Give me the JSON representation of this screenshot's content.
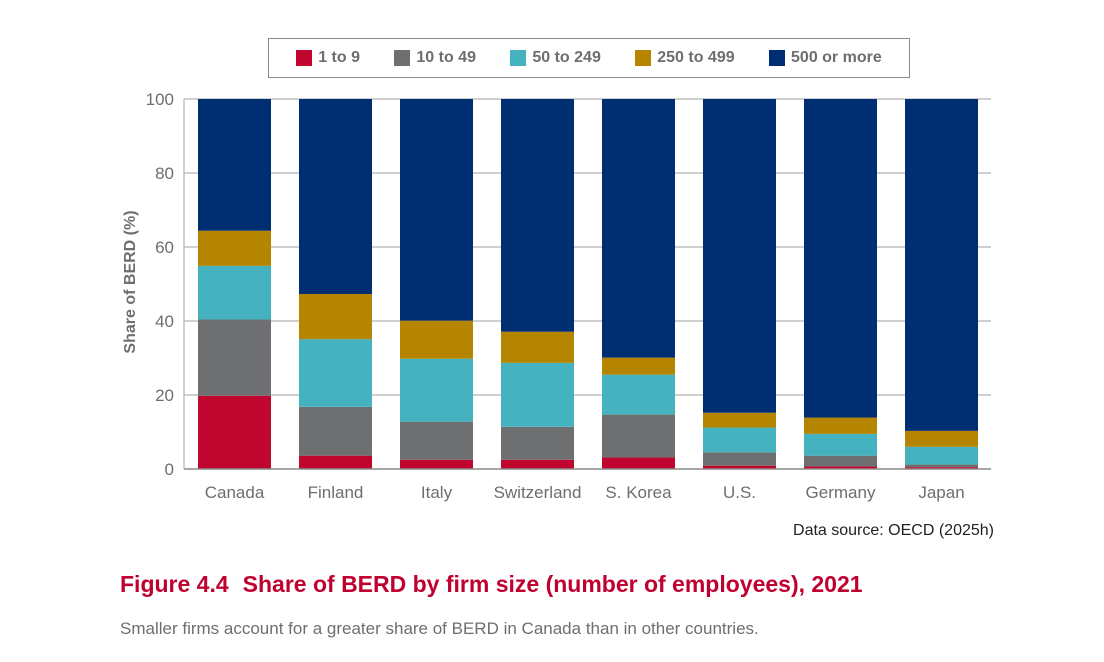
{
  "chart_data": {
    "type": "bar",
    "stacked": true,
    "categories": [
      "Canada",
      "Finland",
      "Italy",
      "Switzerland",
      "S. Korea",
      "U.S.",
      "Germany",
      "Japan"
    ],
    "series": [
      {
        "name": "1 to 9",
        "color": "#c0052f",
        "values": [
          19.8,
          3.6,
          2.5,
          2.5,
          3.1,
          0.9,
          0.7,
          0.5
        ]
      },
      {
        "name": "10 to 49",
        "color": "#6e6f71",
        "values": [
          20.6,
          13.2,
          10.3,
          8.9,
          11.6,
          3.6,
          2.9,
          0.7
        ]
      },
      {
        "name": "50 to 249",
        "color": "#44b3bf",
        "values": [
          14.5,
          18.3,
          17.0,
          17.3,
          10.8,
          6.7,
          5.9,
          4.8
        ]
      },
      {
        "name": "250 to 499",
        "color": "#b68500",
        "values": [
          9.5,
          12.2,
          10.3,
          8.4,
          4.6,
          4.0,
          4.4,
          4.3
        ]
      },
      {
        "name": "500 or more",
        "color": "#002e72",
        "values": [
          35.6,
          52.7,
          59.9,
          62.9,
          69.9,
          84.8,
          86.1,
          89.7
        ]
      }
    ],
    "ylabel": "Share of BERD (%)",
    "xlabel": "",
    "ylim": [
      0,
      100
    ],
    "yticks": [
      0,
      20,
      40,
      60,
      80,
      100
    ],
    "grid": true,
    "legend_position": "top"
  },
  "source": "Data source: OECD (2025h)",
  "figure": {
    "number": "Figure 4.4",
    "title": "Share of BERD by firm size (number of employees), 2021",
    "subtitle": "Smaller firms account for a greater share of BERD in Canada than in other countries."
  }
}
